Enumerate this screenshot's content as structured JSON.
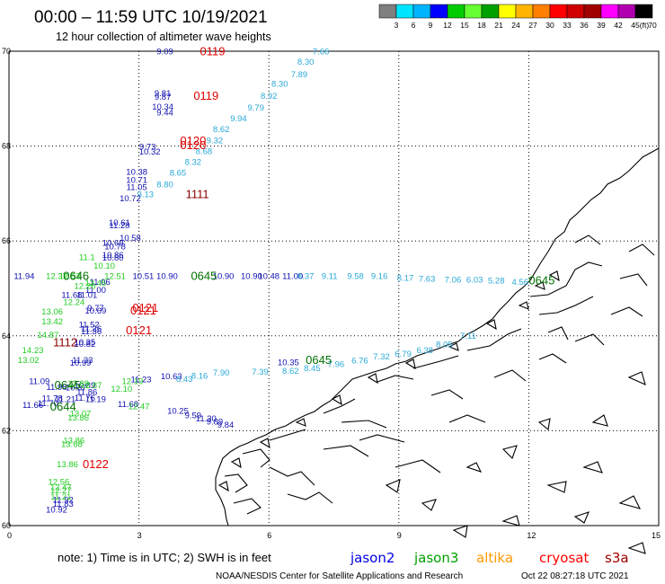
{
  "chart_data": {
    "type": "scatter",
    "title": "00:00 – 11:59 UTC 10/19/2021",
    "subtitle": "12 hour collection of altimeter wave heights",
    "x_ticks": [
      "0",
      "3",
      "6",
      "9",
      "12",
      "15"
    ],
    "y_ticks": [
      "70",
      "68",
      "66",
      "64",
      "62",
      "60"
    ],
    "xlim": [
      0,
      15
    ],
    "ylim": [
      60,
      70
    ],
    "grid": true,
    "legend": {
      "position": "top-right",
      "unit": "(ft)",
      "labels": [
        "3",
        "6",
        "9",
        "12",
        "15",
        "18",
        "21",
        "24",
        "27",
        "30",
        "33",
        "36",
        "39",
        "42",
        "45",
        "70"
      ],
      "colors": [
        "#7f7f7f",
        "#00e5ff",
        "#00b4ff",
        "#0000ff",
        "#00cc00",
        "#66ff33",
        "#00a000",
        "#ffff00",
        "#ffb400",
        "#ff7f00",
        "#ff0000",
        "#d00000",
        "#a00000",
        "#ff00ff",
        "#b000b0",
        "#000000"
      ]
    },
    "series": [
      {
        "name": "jason2",
        "color": "#1010b0",
        "points": [
          {
            "x": 3.6,
            "y": 69.93,
            "label": "9.09"
          },
          {
            "x": 3.55,
            "y": 69.05,
            "label": "9.81"
          },
          {
            "x": 3.55,
            "y": 68.98,
            "label": "9.87"
          },
          {
            "x": 3.55,
            "y": 68.77,
            "label": "10.34"
          },
          {
            "x": 3.6,
            "y": 68.65,
            "label": "9.44"
          },
          {
            "x": 3.2,
            "y": 67.93,
            "label": "9.73"
          },
          {
            "x": 3.25,
            "y": 67.82,
            "label": "10.32"
          },
          {
            "x": 2.95,
            "y": 67.4,
            "label": "10.38"
          },
          {
            "x": 2.95,
            "y": 67.23,
            "label": "10.71"
          },
          {
            "x": 2.95,
            "y": 67.07,
            "label": "11.05"
          },
          {
            "x": 2.8,
            "y": 66.84,
            "label": "10.72"
          },
          {
            "x": 2.55,
            "y": 66.33,
            "label": "10.61"
          },
          {
            "x": 2.55,
            "y": 66.27,
            "label": "11.28"
          },
          {
            "x": 2.8,
            "y": 66.0,
            "label": "10.58"
          },
          {
            "x": 2.4,
            "y": 65.9,
            "label": "10.69"
          },
          {
            "x": 2.45,
            "y": 65.82,
            "label": "10.78"
          },
          {
            "x": 2.4,
            "y": 65.64,
            "label": "10.86"
          },
          {
            "x": 2.4,
            "y": 65.59,
            "label": "10.80"
          },
          {
            "x": 0.35,
            "y": 65.2,
            "label": "11.94"
          },
          {
            "x": 3.1,
            "y": 65.2,
            "label": "10.51"
          },
          {
            "x": 3.65,
            "y": 65.2,
            "label": "10.90"
          },
          {
            "x": 4.95,
            "y": 65.2,
            "label": "10.90"
          },
          {
            "x": 5.6,
            "y": 65.2,
            "label": "10.90"
          },
          {
            "x": 6.0,
            "y": 65.2,
            "label": "10.48"
          },
          {
            "x": 6.55,
            "y": 65.2,
            "label": "11.00"
          },
          {
            "x": 2.1,
            "y": 65.08,
            "label": "11.06"
          },
          {
            "x": 2.0,
            "y": 64.91,
            "label": "11.00"
          },
          {
            "x": 1.45,
            "y": 64.8,
            "label": "11.68"
          },
          {
            "x": 1.8,
            "y": 64.8,
            "label": "11.01"
          },
          {
            "x": 2.0,
            "y": 64.53,
            "label": "9.77"
          },
          {
            "x": 2.0,
            "y": 64.47,
            "label": "10.69"
          },
          {
            "x": 1.85,
            "y": 64.18,
            "label": "11.52"
          },
          {
            "x": 1.9,
            "y": 64.09,
            "label": "11.26"
          },
          {
            "x": 1.9,
            "y": 64.03,
            "label": "11.36"
          },
          {
            "x": 1.75,
            "y": 63.81,
            "label": "10.35"
          },
          {
            "x": 1.75,
            "y": 63.77,
            "label": "10.82"
          },
          {
            "x": 1.7,
            "y": 63.43,
            "label": "11.33"
          },
          {
            "x": 1.65,
            "y": 63.37,
            "label": "10.99"
          },
          {
            "x": 6.45,
            "y": 63.38,
            "label": "10.35"
          },
          {
            "x": 3.75,
            "y": 63.09,
            "label": "10.63"
          },
          {
            "x": 3.05,
            "y": 63.02,
            "label": "11.23"
          },
          {
            "x": 0.7,
            "y": 62.98,
            "label": "11.09"
          },
          {
            "x": 1.75,
            "y": 62.9,
            "label": "10.89"
          },
          {
            "x": 1.55,
            "y": 62.85,
            "label": "10.37"
          },
          {
            "x": 1.1,
            "y": 62.86,
            "label": "11.98"
          },
          {
            "x": 1.8,
            "y": 62.76,
            "label": "11.86"
          },
          {
            "x": 1.75,
            "y": 62.63,
            "label": "11.76"
          },
          {
            "x": 1.0,
            "y": 62.62,
            "label": "11.78"
          },
          {
            "x": 1.3,
            "y": 62.6,
            "label": "11.21"
          },
          {
            "x": 2.0,
            "y": 62.6,
            "label": "11.19"
          },
          {
            "x": 0.9,
            "y": 62.52,
            "label": "11.70"
          },
          {
            "x": 0.55,
            "y": 62.48,
            "label": "11.66"
          },
          {
            "x": 2.75,
            "y": 62.5,
            "label": "11.68"
          },
          {
            "x": 3.9,
            "y": 62.36,
            "label": "10.25"
          },
          {
            "x": 4.25,
            "y": 62.26,
            "label": "9.59"
          },
          {
            "x": 4.55,
            "y": 62.2,
            "label": "11.30"
          },
          {
            "x": 4.75,
            "y": 62.13,
            "label": "9.89"
          },
          {
            "x": 5.0,
            "y": 62.06,
            "label": "9.84"
          },
          {
            "x": 1.25,
            "y": 60.48,
            "label": "11.92"
          },
          {
            "x": 1.25,
            "y": 60.4,
            "label": "11.83"
          },
          {
            "x": 1.1,
            "y": 60.27,
            "label": "10.92"
          }
        ]
      },
      {
        "name": "jason3",
        "color": "#22cc22",
        "points": [
          {
            "x": 1.8,
            "y": 65.6,
            "label": "11.1"
          },
          {
            "x": 2.2,
            "y": 65.42,
            "label": "10.10"
          },
          {
            "x": 1.1,
            "y": 65.2,
            "label": "12.37"
          },
          {
            "x": 1.4,
            "y": 65.2,
            "label": "12.53"
          },
          {
            "x": 2.45,
            "y": 65.2,
            "label": "12.51"
          },
          {
            "x": 2.0,
            "y": 65.06,
            "label": "12.45"
          },
          {
            "x": 1.75,
            "y": 64.99,
            "label": "12.26"
          },
          {
            "x": 1.5,
            "y": 64.65,
            "label": "12.24"
          },
          {
            "x": 1.0,
            "y": 64.45,
            "label": "13.06"
          },
          {
            "x": 1.0,
            "y": 64.24,
            "label": "13.42"
          },
          {
            "x": 0.9,
            "y": 63.96,
            "label": "14.87"
          },
          {
            "x": 0.55,
            "y": 63.64,
            "label": "14.23"
          },
          {
            "x": 0.45,
            "y": 63.43,
            "label": "13.02"
          },
          {
            "x": 1.6,
            "y": 62.94,
            "label": "12.69"
          },
          {
            "x": 1.9,
            "y": 62.9,
            "label": "12.87"
          },
          {
            "x": 2.85,
            "y": 62.98,
            "label": "12.19"
          },
          {
            "x": 2.6,
            "y": 62.82,
            "label": "12.10"
          },
          {
            "x": 3.0,
            "y": 62.45,
            "label": "12.47"
          },
          {
            "x": 1.65,
            "y": 62.3,
            "label": "13.07"
          },
          {
            "x": 1.6,
            "y": 62.22,
            "label": "13.86"
          },
          {
            "x": 1.5,
            "y": 61.73,
            "label": "13.86"
          },
          {
            "x": 1.45,
            "y": 61.66,
            "label": "13.68"
          },
          {
            "x": 1.35,
            "y": 61.23,
            "label": "13.86"
          },
          {
            "x": 1.15,
            "y": 60.86,
            "label": "12.56"
          },
          {
            "x": 1.2,
            "y": 60.75,
            "label": "12.47"
          },
          {
            "x": 1.2,
            "y": 60.68,
            "label": "12.27"
          },
          {
            "x": 1.2,
            "y": 60.55,
            "label": "11.21"
          }
        ]
      },
      {
        "name": "altika",
        "color": "#2aa8d8",
        "points": [
          {
            "x": 7.2,
            "y": 69.93,
            "label": "7.66"
          },
          {
            "x": 6.85,
            "y": 69.72,
            "label": "8.30"
          },
          {
            "x": 6.7,
            "y": 69.45,
            "label": "7.89"
          },
          {
            "x": 6.25,
            "y": 69.25,
            "label": "8.30"
          },
          {
            "x": 6.0,
            "y": 69.0,
            "label": "8.92"
          },
          {
            "x": 5.7,
            "y": 68.75,
            "label": "9.79"
          },
          {
            "x": 5.3,
            "y": 68.52,
            "label": "9.94"
          },
          {
            "x": 4.9,
            "y": 68.3,
            "label": "8.62"
          },
          {
            "x": 4.75,
            "y": 68.06,
            "label": "9.32"
          },
          {
            "x": 4.5,
            "y": 67.83,
            "label": "8.68"
          },
          {
            "x": 4.25,
            "y": 67.6,
            "label": "8.32"
          },
          {
            "x": 3.9,
            "y": 67.38,
            "label": "8.65"
          },
          {
            "x": 3.6,
            "y": 67.13,
            "label": "8.80"
          },
          {
            "x": 3.15,
            "y": 66.92,
            "label": "9.13"
          },
          {
            "x": 6.85,
            "y": 65.2,
            "label": "8.37"
          },
          {
            "x": 7.4,
            "y": 65.2,
            "label": "9.11"
          },
          {
            "x": 8.0,
            "y": 65.2,
            "label": "9.58"
          },
          {
            "x": 8.55,
            "y": 65.2,
            "label": "9.16"
          },
          {
            "x": 9.15,
            "y": 65.16,
            "label": "8.17"
          },
          {
            "x": 9.65,
            "y": 65.14,
            "label": "7.63"
          },
          {
            "x": 10.25,
            "y": 65.12,
            "label": "7.06"
          },
          {
            "x": 10.75,
            "y": 65.12,
            "label": "6.03"
          },
          {
            "x": 11.25,
            "y": 65.1,
            "label": "5.28"
          },
          {
            "x": 11.8,
            "y": 65.08,
            "label": "4.56"
          },
          {
            "x": 10.6,
            "y": 63.94,
            "label": "7.11"
          },
          {
            "x": 10.05,
            "y": 63.76,
            "label": "8.05"
          },
          {
            "x": 9.6,
            "y": 63.64,
            "label": "6.38"
          },
          {
            "x": 9.1,
            "y": 63.56,
            "label": "6.79"
          },
          {
            "x": 8.6,
            "y": 63.5,
            "label": "7.32"
          },
          {
            "x": 8.1,
            "y": 63.42,
            "label": "6.76"
          },
          {
            "x": 7.55,
            "y": 63.34,
            "label": "7.96"
          },
          {
            "x": 7.0,
            "y": 63.26,
            "label": "8.45"
          },
          {
            "x": 6.5,
            "y": 63.2,
            "label": "8.62"
          },
          {
            "x": 5.8,
            "y": 63.18,
            "label": "7.39"
          },
          {
            "x": 4.9,
            "y": 63.16,
            "label": "7.90"
          },
          {
            "x": 4.4,
            "y": 63.1,
            "label": "8.16"
          },
          {
            "x": 4.05,
            "y": 63.03,
            "label": "8.43"
          }
        ]
      }
    ],
    "time_labels": [
      {
        "x": 4.7,
        "y": 69.93,
        "label": "0119",
        "color": "#e00000"
      },
      {
        "x": 4.55,
        "y": 69.0,
        "label": "0119",
        "color": "#e00000"
      },
      {
        "x": 4.25,
        "y": 68.05,
        "label": "0120",
        "color": "#e00000"
      },
      {
        "x": 4.25,
        "y": 67.95,
        "label": "0120",
        "color": "#e00000"
      },
      {
        "x": 4.35,
        "y": 66.92,
        "label": "1111",
        "color": "#8b0000"
      },
      {
        "x": 1.55,
        "y": 65.2,
        "label": "0646",
        "color": "#007000"
      },
      {
        "x": 4.5,
        "y": 65.2,
        "label": "0645",
        "color": "#007000"
      },
      {
        "x": 12.3,
        "y": 65.1,
        "label": "0645",
        "color": "#007000"
      },
      {
        "x": 3.15,
        "y": 64.53,
        "label": "0121",
        "color": "#e00000"
      },
      {
        "x": 3.1,
        "y": 64.47,
        "label": "0121",
        "color": "#e00000"
      },
      {
        "x": 3.0,
        "y": 64.05,
        "label": "0121",
        "color": "#e00000"
      },
      {
        "x": 1.3,
        "y": 63.8,
        "label": "1112",
        "color": "#8b0000"
      },
      {
        "x": 7.15,
        "y": 63.43,
        "label": "0645",
        "color": "#007000"
      },
      {
        "x": 1.35,
        "y": 62.9,
        "label": "0645",
        "color": "#007000"
      },
      {
        "x": 1.25,
        "y": 62.44,
        "label": "0644",
        "color": "#007000"
      },
      {
        "x": 2.0,
        "y": 61.23,
        "label": "0122",
        "color": "#e00000"
      }
    ]
  },
  "footer": {
    "note": "note: 1) Time is in UTC; 2) SWH is in feet",
    "satellites": [
      {
        "name": "jason2",
        "color": "#0000e0"
      },
      {
        "name": "jason3",
        "color": "#00a000"
      },
      {
        "name": "altika",
        "color": "#ff9900"
      },
      {
        "name": "cryosat",
        "color": "#ff0000"
      },
      {
        "name": "s3a",
        "color": "#a00000"
      }
    ],
    "credit": "NOAA/NESDIS Center for Satellite Applications and Research",
    "generated": "Oct 22 08:27:18 UTC 2021"
  }
}
